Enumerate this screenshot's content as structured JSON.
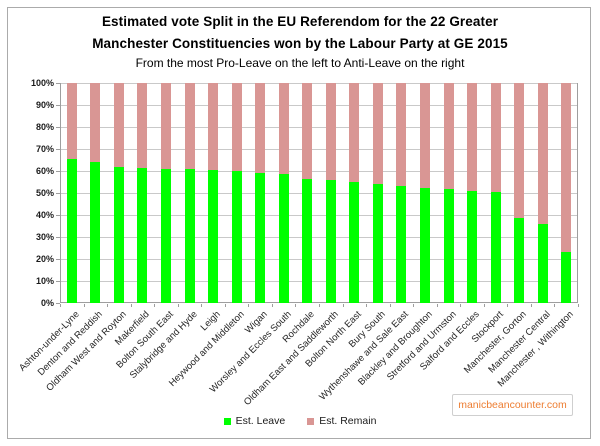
{
  "chart_data": {
    "type": "bar",
    "stacked": true,
    "title_lines": [
      "Estimated vote Split in the EU Referendom for the 22 Greater",
      "Manchester Constituencies won by the Labour Party at GE 2015"
    ],
    "title": "Estimated vote Split in the EU Referendom for the 22 Greater Manchester Constituencies won by the Labour Party at GE 2015",
    "subtitle": "From the most Pro-Leave on the left to Anti-Leave on the right",
    "categories": [
      "Ashton-under-Lyne",
      "Denton and Reddish",
      "Oldham West and Royton",
      "Makerfield",
      "Bolton South East",
      "Stalybridge and Hyde",
      "Leigh",
      "Heywood and Middleton",
      "Wigan",
      "Worsley and Eccles South",
      "Rochdale",
      "Oldham East and Saddleworth",
      "Bolton North East",
      "Bury South",
      "Wythenshawe and Sale East",
      "Blackley and Broughton",
      "Stretford and Urmston",
      "Salford and Eccles",
      "Stockport",
      "Manchester, Gorton",
      "Manchester Central",
      "Manchester , Withington"
    ],
    "series": [
      {
        "name": "Est. Leave",
        "color": "#00FF00",
        "values": [
          65.5,
          64,
          62,
          61.5,
          61,
          61,
          60.5,
          60,
          59,
          58.5,
          56.5,
          56,
          55,
          54,
          53,
          52.5,
          52,
          51,
          50.5,
          38.5,
          36,
          23
        ]
      },
      {
        "name": "Est. Remain",
        "color": "#D99694",
        "values": [
          34.5,
          36,
          38,
          38.5,
          39,
          39,
          39.5,
          40,
          41,
          41.5,
          43.5,
          44,
          45,
          46,
          47,
          47.5,
          48,
          49,
          49.5,
          61.5,
          64,
          77
        ]
      }
    ],
    "y_axis": {
      "min": 0,
      "max": 100,
      "step": 10,
      "tick_labels": [
        "0%",
        "10%",
        "20%",
        "30%",
        "40%",
        "50%",
        "60%",
        "70%",
        "80%",
        "90%",
        "100%"
      ]
    },
    "grid": true,
    "legend_position": "bottom-center"
  },
  "watermark": {
    "text": "manicbeancounter.com",
    "color": "#ED7D31"
  }
}
